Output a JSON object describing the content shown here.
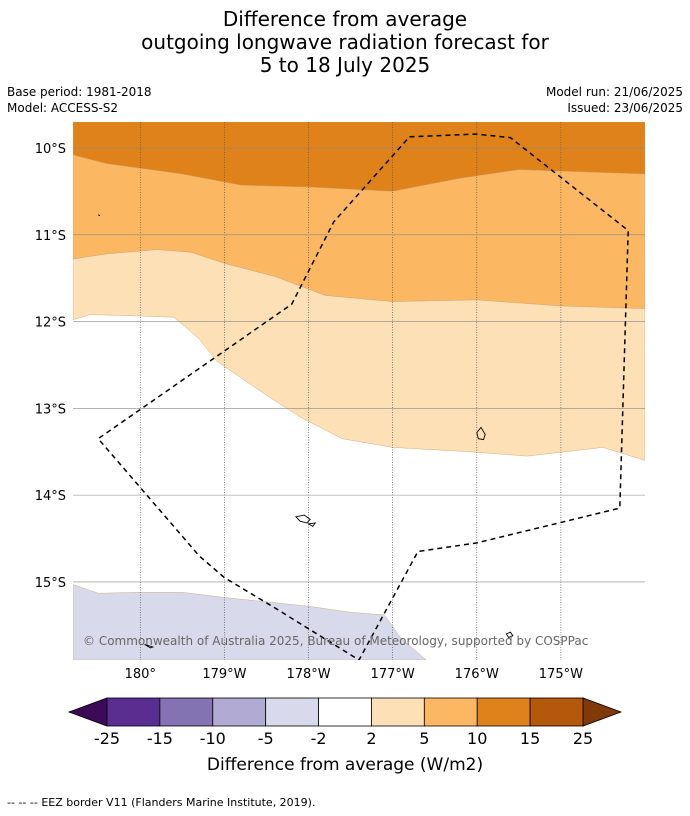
{
  "header": {
    "title_lines": [
      "Difference from average",
      "outgoing longwave radiation forecast for",
      "5 to 18 July 2025"
    ],
    "base_period": "Base period: 1981-2018",
    "model": "Model: ACCESS-S2",
    "model_run": "Model run: 21/06/2025",
    "issued": "Issued: 23/06/2025"
  },
  "chart_data": {
    "type": "heatmap",
    "title": "Difference from average outgoing longwave radiation forecast for 5 to 18 July 2025",
    "x_ticks": [
      {
        "lon": 180,
        "label": "180°"
      },
      {
        "lon": 181,
        "label": "179°W"
      },
      {
        "lon": 182,
        "label": "178°W"
      },
      {
        "lon": 183,
        "label": "177°W"
      },
      {
        "lon": 184,
        "label": "176°W"
      },
      {
        "lon": 185,
        "label": "175°W"
      }
    ],
    "y_ticks": [
      {
        "lat": -10,
        "label": "10°S"
      },
      {
        "lat": -11,
        "label": "11°S"
      },
      {
        "lat": -12,
        "label": "12°S"
      },
      {
        "lat": -13,
        "label": "13°S"
      },
      {
        "lat": -14,
        "label": "14°S"
      },
      {
        "lat": -15,
        "label": "15°S"
      }
    ],
    "lon_range": [
      179.2,
      186.0
    ],
    "lat_range": [
      -15.9,
      -9.7
    ],
    "grid": true,
    "levels": [
      -25,
      -15,
      -10,
      -5,
      -2,
      2,
      5,
      10,
      15,
      25
    ],
    "level_labels": [
      "-25",
      "-15",
      "-10",
      "-5",
      "-2",
      "2",
      "5",
      "10",
      "15",
      "25"
    ],
    "colors": [
      "#5a2d91",
      "#8373b3",
      "#b1aad3",
      "#d8d9ea",
      "#ffffff",
      "#fde0b5",
      "#fcb763",
      "#e0821a",
      "#b4580b"
    ],
    "extend_low_color": "#3b0b58",
    "extend_high_color": "#7e3a08",
    "colorbar_label": "Difference from average (W/m2)",
    "regions": [
      {
        "range": "10 to 15",
        "color": "#e0821a",
        "points": [
          [
            179.2,
            -9.7
          ],
          [
            186.0,
            -9.7
          ],
          [
            186.0,
            -10.3
          ],
          [
            184.5,
            -10.25
          ],
          [
            183.8,
            -10.35
          ],
          [
            183.0,
            -10.5
          ],
          [
            182.0,
            -10.45
          ],
          [
            181.2,
            -10.43
          ],
          [
            180.5,
            -10.3
          ],
          [
            179.6,
            -10.18
          ],
          [
            179.2,
            -10.08
          ]
        ]
      },
      {
        "range": "5 to 10",
        "color": "#fcb763",
        "points": [
          [
            179.2,
            -10.08
          ],
          [
            179.6,
            -10.18
          ],
          [
            180.5,
            -10.3
          ],
          [
            181.2,
            -10.43
          ],
          [
            182.0,
            -10.45
          ],
          [
            183.0,
            -10.5
          ],
          [
            183.8,
            -10.35
          ],
          [
            184.5,
            -10.25
          ],
          [
            186.0,
            -10.3
          ],
          [
            186.0,
            -11.85
          ],
          [
            185.0,
            -11.82
          ],
          [
            184.0,
            -11.75
          ],
          [
            183.0,
            -11.77
          ],
          [
            182.2,
            -11.7
          ],
          [
            181.6,
            -11.48
          ],
          [
            181.0,
            -11.33
          ],
          [
            180.6,
            -11.2
          ],
          [
            180.2,
            -11.17
          ],
          [
            179.6,
            -11.22
          ],
          [
            179.2,
            -11.28
          ]
        ]
      },
      {
        "range": "2 to 5",
        "color": "#fde0b5",
        "points": [
          [
            179.2,
            -11.28
          ],
          [
            179.6,
            -11.22
          ],
          [
            180.2,
            -11.17
          ],
          [
            180.6,
            -11.2
          ],
          [
            181.0,
            -11.33
          ],
          [
            181.6,
            -11.48
          ],
          [
            182.2,
            -11.7
          ],
          [
            183.0,
            -11.77
          ],
          [
            184.0,
            -11.75
          ],
          [
            185.0,
            -11.82
          ],
          [
            186.0,
            -11.85
          ],
          [
            186.0,
            -13.6
          ],
          [
            185.5,
            -13.45
          ],
          [
            184.6,
            -13.55
          ],
          [
            183.9,
            -13.5
          ],
          [
            183.0,
            -13.45
          ],
          [
            182.4,
            -13.35
          ],
          [
            181.9,
            -13.1
          ],
          [
            181.5,
            -12.85
          ],
          [
            181.2,
            -12.65
          ],
          [
            180.9,
            -12.45
          ],
          [
            180.7,
            -12.2
          ],
          [
            180.4,
            -11.95
          ],
          [
            179.8,
            -11.93
          ],
          [
            179.4,
            -11.92
          ],
          [
            179.2,
            -11.98
          ]
        ]
      },
      {
        "range": "-5 to -2",
        "color": "#d8d9ea",
        "points": [
          [
            179.2,
            -15.03
          ],
          [
            179.5,
            -15.13
          ],
          [
            180.0,
            -15.12
          ],
          [
            180.5,
            -15.12
          ],
          [
            181.0,
            -15.18
          ],
          [
            182.0,
            -15.28
          ],
          [
            182.5,
            -15.35
          ],
          [
            182.9,
            -15.38
          ],
          [
            183.1,
            -15.65
          ],
          [
            183.4,
            -15.9
          ],
          [
            179.2,
            -15.9
          ]
        ]
      }
    ],
    "eez_border": [
      [
        183.2,
        -9.87
      ],
      [
        184.0,
        -9.84
      ],
      [
        184.4,
        -9.88
      ],
      [
        185.8,
        -10.95
      ],
      [
        185.7,
        -14.15
      ],
      [
        184.0,
        -14.55
      ],
      [
        183.3,
        -14.65
      ],
      [
        182.6,
        -15.9
      ],
      [
        181.6,
        -15.3
      ],
      [
        181.0,
        -14.95
      ],
      [
        180.7,
        -14.7
      ],
      [
        179.5,
        -13.35
      ],
      [
        181.8,
        -11.8
      ],
      [
        182.3,
        -10.85
      ],
      [
        183.2,
        -9.87
      ]
    ],
    "islands": [
      [
        [
          184.0,
          -13.28
        ],
        [
          184.05,
          -13.22
        ],
        [
          184.1,
          -13.3
        ],
        [
          184.08,
          -13.36
        ],
        [
          184.02,
          -13.35
        ]
      ],
      [
        [
          181.85,
          -14.25
        ],
        [
          181.95,
          -14.23
        ],
        [
          182.02,
          -14.28
        ],
        [
          181.98,
          -14.32
        ],
        [
          181.9,
          -14.3
        ]
      ],
      [
        [
          182.0,
          -14.33
        ],
        [
          182.08,
          -14.32
        ],
        [
          182.05,
          -14.36
        ]
      ],
      [
        [
          184.35,
          -15.6
        ],
        [
          184.4,
          -15.58
        ],
        [
          184.43,
          -15.62
        ],
        [
          184.38,
          -15.64
        ]
      ],
      [
        [
          180.05,
          -15.72
        ],
        [
          180.15,
          -15.75
        ],
        [
          180.12,
          -15.76
        ]
      ],
      [
        [
          179.5,
          -10.77
        ],
        [
          179.52,
          -10.78
        ]
      ]
    ],
    "annotation": "© Commonwealth of Australia 2025, Bureau of Meteorology, supported by COSPPac",
    "legend_note": "EEZ border V11 (Flanders Marine Institute, 2019)."
  },
  "footer": {
    "legend_line_symbol": "--  --  --",
    "legend_text": "EEZ border V11 (Flanders Marine Institute, 2019)."
  }
}
